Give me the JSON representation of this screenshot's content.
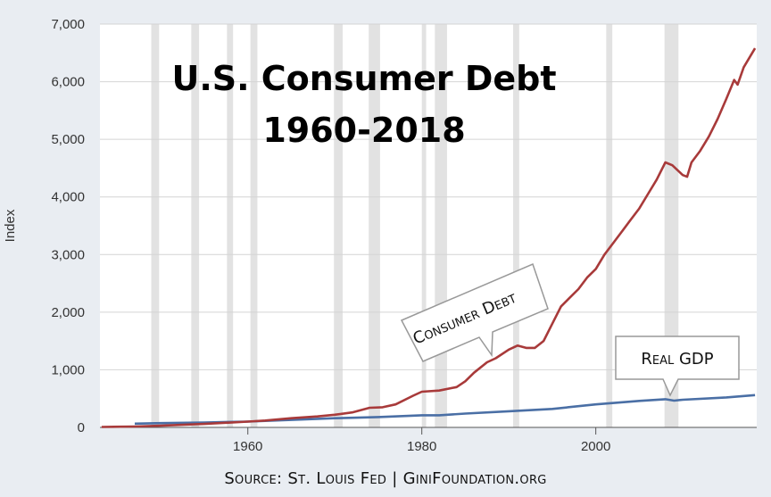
{
  "title_line1": "U.S. Consumer Debt",
  "title_line2": "1960-2018",
  "source": "Source: St. Louis Fed | GiniFoundation.org",
  "chart_data": {
    "type": "line",
    "ylabel": "Index",
    "xlim": [
      1943,
      2018.5
    ],
    "ylim": [
      0,
      7000
    ],
    "y_ticks": [
      0,
      1000,
      2000,
      3000,
      4000,
      5000,
      6000,
      7000
    ],
    "y_tick_labels": [
      "0",
      "1,000",
      "2,000",
      "3,000",
      "4,000",
      "5,000",
      "6,000",
      "7,000"
    ],
    "x_ticks": [
      1960,
      1980,
      2000
    ],
    "x_tick_labels": [
      "1960",
      "1980",
      "2000"
    ],
    "grid": "horizontal",
    "recessions": [
      [
        1948.9,
        1949.8
      ],
      [
        1953.5,
        1954.4
      ],
      [
        1957.6,
        1958.3
      ],
      [
        1960.3,
        1961.1
      ],
      [
        1969.9,
        1970.9
      ],
      [
        1973.9,
        1975.2
      ],
      [
        1980.0,
        1980.5
      ],
      [
        1981.5,
        1982.9
      ],
      [
        1990.5,
        1991.2
      ],
      [
        2001.2,
        2001.9
      ],
      [
        2007.9,
        2009.5
      ]
    ],
    "series": [
      {
        "name": "Consumer Debt",
        "color": "#a83a3a",
        "points": [
          [
            1943.2,
            8
          ],
          [
            1947,
            15
          ],
          [
            1950,
            30
          ],
          [
            1955,
            60
          ],
          [
            1960,
            100
          ],
          [
            1962,
            120
          ],
          [
            1965,
            160
          ],
          [
            1968,
            190
          ],
          [
            1970,
            220
          ],
          [
            1972,
            260
          ],
          [
            1974,
            340
          ],
          [
            1975.5,
            350
          ],
          [
            1977,
            400
          ],
          [
            1979,
            550
          ],
          [
            1980,
            620
          ],
          [
            1982,
            640
          ],
          [
            1984,
            700
          ],
          [
            1985,
            800
          ],
          [
            1986,
            950
          ],
          [
            1987.5,
            1130
          ],
          [
            1988.5,
            1200
          ],
          [
            1990,
            1350
          ],
          [
            1991,
            1420
          ],
          [
            1992,
            1380
          ],
          [
            1993,
            1380
          ],
          [
            1994,
            1500
          ],
          [
            1995,
            1800
          ],
          [
            1996,
            2100
          ],
          [
            1997,
            2250
          ],
          [
            1998,
            2400
          ],
          [
            1999,
            2600
          ],
          [
            2000,
            2750
          ],
          [
            2001,
            3000
          ],
          [
            2002,
            3200
          ],
          [
            2003,
            3400
          ],
          [
            2004,
            3600
          ],
          [
            2005,
            3800
          ],
          [
            2006,
            4050
          ],
          [
            2007,
            4300
          ],
          [
            2008,
            4600
          ],
          [
            2008.8,
            4550
          ],
          [
            2010,
            4380
          ],
          [
            2010.5,
            4350
          ],
          [
            2011,
            4600
          ],
          [
            2012,
            4800
          ],
          [
            2013,
            5050
          ],
          [
            2014,
            5350
          ],
          [
            2015,
            5700
          ],
          [
            2015.9,
            6030
          ],
          [
            2016.3,
            5950
          ],
          [
            2017,
            6250
          ],
          [
            2018.3,
            6580
          ]
        ]
      },
      {
        "name": "Real GDP",
        "color": "#4a6fa5",
        "points": [
          [
            1947,
            65
          ],
          [
            1950,
            75
          ],
          [
            1955,
            85
          ],
          [
            1960,
            100
          ],
          [
            1965,
            130
          ],
          [
            1970,
            160
          ],
          [
            1975,
            180
          ],
          [
            1980,
            210
          ],
          [
            1982,
            210
          ],
          [
            1985,
            240
          ],
          [
            1990,
            280
          ],
          [
            1995,
            320
          ],
          [
            2000,
            400
          ],
          [
            2005,
            460
          ],
          [
            2008,
            490
          ],
          [
            2009,
            465
          ],
          [
            2010,
            480
          ],
          [
            2015,
            520
          ],
          [
            2018.3,
            560
          ]
        ]
      }
    ],
    "annotations": [
      {
        "text": "Consumer Debt",
        "series": "Consumer Debt"
      },
      {
        "text": "Real GDP",
        "series": "Real GDP"
      }
    ]
  }
}
